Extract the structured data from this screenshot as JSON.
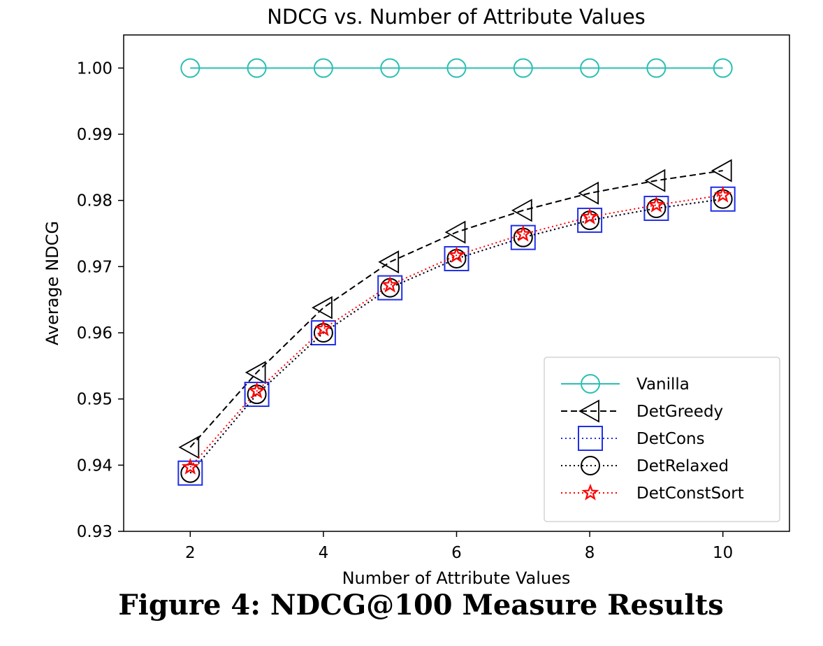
{
  "chart_data": {
    "type": "line",
    "title": "NDCG vs. Number of Attribute Values",
    "xlabel": "Number of Attribute Values",
    "ylabel": "Average NDCG",
    "x": [
      2,
      3,
      4,
      5,
      6,
      7,
      8,
      9,
      10
    ],
    "xlim": [
      1,
      11
    ],
    "ylim": [
      0.93,
      1.005
    ],
    "xticks": [
      2,
      4,
      6,
      8,
      10
    ],
    "yticks": [
      0.93,
      0.94,
      0.95,
      0.96,
      0.97,
      0.98,
      0.99,
      1.0
    ],
    "ytick_labels": [
      "0.93",
      "0.94",
      "0.95",
      "0.96",
      "0.97",
      "0.98",
      "0.99",
      "1.00"
    ],
    "grid": false,
    "legend_position": "lower-right",
    "series": [
      {
        "name": "Vanilla",
        "color": "#2bbfb3",
        "linestyle": "solid",
        "marker": "circle",
        "values": [
          1.0,
          1.0,
          1.0,
          1.0,
          1.0,
          1.0,
          1.0,
          1.0,
          1.0
        ]
      },
      {
        "name": "DetGreedy",
        "color": "#000000",
        "linestyle": "dashed",
        "marker": "triangle-left",
        "values": [
          0.9427,
          0.954,
          0.9638,
          0.9707,
          0.9752,
          0.9785,
          0.9811,
          0.983,
          0.9845
        ]
      },
      {
        "name": "DetCons",
        "color": "#1f2fe8",
        "linestyle": "dotted",
        "marker": "square",
        "values": [
          0.9388,
          0.9507,
          0.96,
          0.9668,
          0.9712,
          0.9744,
          0.977,
          0.9788,
          0.9802
        ]
      },
      {
        "name": "DetRelaxed",
        "color": "#000000",
        "linestyle": "dotted",
        "marker": "circle",
        "values": [
          0.9388,
          0.9507,
          0.96,
          0.9668,
          0.9712,
          0.9744,
          0.977,
          0.9788,
          0.9802
        ]
      },
      {
        "name": "DetConstSort",
        "color": "#ff0000",
        "linestyle": "dotted",
        "marker": "star",
        "values": [
          0.9397,
          0.9512,
          0.9606,
          0.9672,
          0.9717,
          0.9749,
          0.9775,
          0.9793,
          0.9808
        ]
      }
    ]
  },
  "caption": "Figure 4: NDCG@100 Measure Results"
}
